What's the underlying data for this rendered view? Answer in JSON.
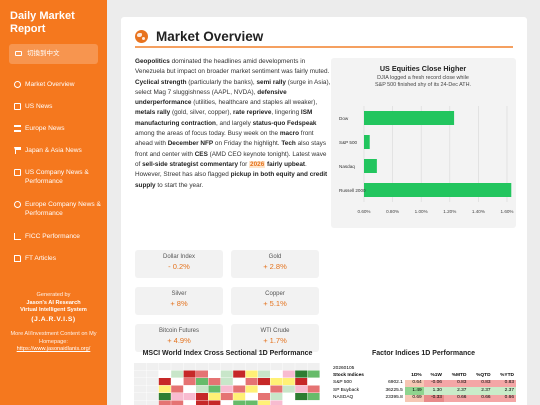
{
  "sidebar": {
    "title": "Daily Market Report",
    "lang_button": "切換到中文",
    "nav": [
      {
        "label": "Market Overview",
        "icon": "globe-icon"
      },
      {
        "label": "US News",
        "icon": "news-icon"
      },
      {
        "label": "Europe News",
        "icon": "bank-icon"
      },
      {
        "label": "Japan & Asia News",
        "icon": "flag-icon"
      },
      {
        "label": "US Company News & Performance",
        "icon": "building-icon"
      },
      {
        "label": "Europe Company News & Performance",
        "icon": "globe-europe-icon"
      },
      {
        "label": "FICC Performance",
        "icon": "chart-icon"
      },
      {
        "label": "FT Articles",
        "icon": "document-icon"
      }
    ],
    "footer": {
      "generated_by": "Generated by",
      "name": "Jason's AI Research",
      "assistant": "Virtual Intelligent System",
      "jarvis": "(J.A.R.V.I.S)",
      "more": "More AI/Investment Content on My Homepage:",
      "link": "https://www.jasonaidlanis.org/"
    }
  },
  "main": {
    "title": "Market Overview",
    "paragraph": [
      {
        "t": "Geopolitics",
        "s": "b"
      },
      {
        "t": " dominated the headlines amid developments in Venezuela but impact on broader market sentiment was fairly muted. "
      },
      {
        "t": "Cyclical strength",
        "s": "b"
      },
      {
        "t": " (particularly the banks), "
      },
      {
        "t": "semi rally",
        "s": "b"
      },
      {
        "t": " (surge in Asia), select Mag 7 sluggishness (AAPL, NVDA), "
      },
      {
        "t": "defensive underperformance",
        "s": "b"
      },
      {
        "t": " (utilities, healthcare and staples all weaker), "
      },
      {
        "t": "metals rally",
        "s": "b"
      },
      {
        "t": " (gold, silver, copper), "
      },
      {
        "t": "rate reprieve",
        "s": "b"
      },
      {
        "t": ", lingering "
      },
      {
        "t": "ISM manufacturing contraction",
        "s": "b"
      },
      {
        "t": ", and largely "
      },
      {
        "t": "status-quo Fedspeak",
        "s": "b"
      },
      {
        "t": " among the areas of focus today. Busy week on the "
      },
      {
        "t": "macro",
        "s": "b"
      },
      {
        "t": " front ahead with "
      },
      {
        "t": "December NFP",
        "s": "b"
      },
      {
        "t": " on Friday the highlight. "
      },
      {
        "t": "Tech",
        "s": "b"
      },
      {
        "t": " also stays front and center with "
      },
      {
        "t": "CES",
        "s": "b"
      },
      {
        "t": " (AMD CEO keynote tonight). Latest wave of "
      },
      {
        "t": "sell-side strategist commentary",
        "s": "b"
      },
      {
        "t": " for "
      },
      {
        "t": "2026",
        "s": "hl"
      },
      {
        "t": " fairly upbeat",
        "s": "b"
      },
      {
        "t": ". However, Street has also flagged "
      },
      {
        "t": "pickup in both equity and credit supply",
        "s": "b"
      },
      {
        "t": " to start the year."
      }
    ],
    "cards": [
      {
        "label": "Dollar Index",
        "value": "- 0.2%"
      },
      {
        "label": "Gold",
        "value": "+ 2.8%"
      },
      {
        "label": "Silver",
        "value": "+ 8%"
      },
      {
        "label": "Copper",
        "value": "+ 5.1%"
      },
      {
        "label": "Bitcoin Futures",
        "value": "+ 4.9%"
      },
      {
        "label": "WTI Crude",
        "value": "+ 1.7%"
      }
    ],
    "heatmap_title": "MSCI World Index Cross Sectional 1D Performance",
    "factor_title": "Factor Indices 1D Performance",
    "factor_table": {
      "date": "20260105",
      "headers": [
        "Stock Indices",
        "",
        "1D%",
        "%1W",
        "%MTD",
        "%QTD",
        "%YTD"
      ],
      "rows": [
        [
          "S&P 500",
          "6902.1",
          "0.64",
          "-0.06",
          "0.83",
          "0.83",
          "0.83"
        ],
        [
          "SP Buyback",
          "36225.5",
          "1.49",
          "1.30",
          "2.37",
          "2.37",
          "2.37"
        ],
        [
          "NASDAQ",
          "23395.8",
          "0.69",
          "-0.33",
          "0.66",
          "0.66",
          "0.66"
        ]
      ]
    }
  },
  "chart_data": {
    "type": "bar",
    "orientation": "horizontal",
    "title": "US Equities Close Higher",
    "subtitle": "DJIA logged a fresh record close while S&P 500 finished shy of its 24-Dec ATH.",
    "categories": [
      "Dow",
      "S&P 500",
      "Nasdaq",
      "Russell 2000"
    ],
    "values": [
      1.23,
      0.64,
      0.69,
      1.63
    ],
    "xlim": [
      0.6,
      1.6
    ],
    "xticks": [
      "0.60%",
      "0.80%",
      "1.00%",
      "1.20%",
      "1.40%",
      "1.60%"
    ],
    "color": "#22c55e",
    "grid": true
  }
}
